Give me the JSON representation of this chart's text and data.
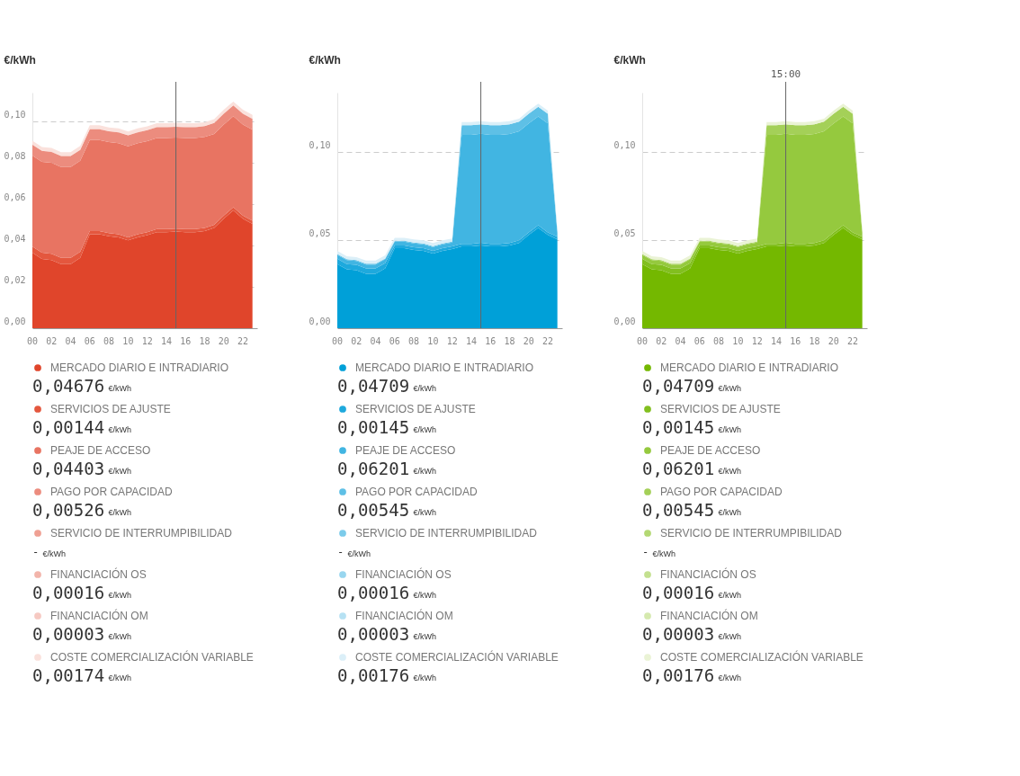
{
  "chart_data": [
    {
      "type": "area",
      "stacked": true,
      "ylabel": "€/kWh",
      "grid": "y",
      "legend": "bottom",
      "x": [
        0,
        1,
        2,
        3,
        4,
        5,
        6,
        7,
        8,
        9,
        10,
        11,
        12,
        13,
        14,
        15,
        16,
        17,
        18,
        19,
        20,
        21,
        22,
        23
      ],
      "xlim": [
        0,
        23.5
      ],
      "xticks": [
        {
          "value": 0,
          "label": "00"
        },
        {
          "value": 2,
          "label": "02"
        },
        {
          "value": 4,
          "label": "04"
        },
        {
          "value": 6,
          "label": "06"
        },
        {
          "value": 8,
          "label": "08"
        },
        {
          "value": 10,
          "label": "10"
        },
        {
          "value": 12,
          "label": "12"
        },
        {
          "value": 14,
          "label": "14"
        },
        {
          "value": 16,
          "label": "16"
        },
        {
          "value": 18,
          "label": "18"
        },
        {
          "value": 20,
          "label": "20"
        },
        {
          "value": 22,
          "label": "22"
        }
      ],
      "ylim": [
        0,
        0.114
      ],
      "yticks": [
        {
          "value": 0,
          "label": "0,00"
        },
        {
          "value": 0.02,
          "label": "0,02"
        },
        {
          "value": 0.04,
          "label": "0,04"
        },
        {
          "value": 0.06,
          "label": "0,06"
        },
        {
          "value": 0.08,
          "label": "0,08"
        },
        {
          "value": 0.1,
          "label": "0,10"
        }
      ],
      "series": [
        {
          "name": "MERCADO DIARIO E INTRADIARIO",
          "color": "#e0452b",
          "values": [
            0.0365,
            0.0335,
            0.033,
            0.031,
            0.031,
            0.034,
            0.0455,
            0.0455,
            0.0445,
            0.044,
            0.0425,
            0.044,
            0.045,
            0.0465,
            0.0465,
            0.04676,
            0.0465,
            0.0465,
            0.047,
            0.0485,
            0.053,
            0.057,
            0.053,
            0.0505
          ]
        },
        {
          "name": "SERVICIOS DE AJUSTE",
          "color": "#e4573e",
          "values": [
            0.003,
            0.003,
            0.003,
            0.003,
            0.003,
            0.003,
            0.0015,
            0.0015,
            0.0015,
            0.0015,
            0.0015,
            0.0015,
            0.0015,
            0.0015,
            0.0015,
            0.00144,
            0.0015,
            0.0015,
            0.0015,
            0.0015,
            0.0015,
            0.0015,
            0.0015,
            0.0015
          ]
        },
        {
          "name": "PEAJE DE ACCESO",
          "color": "#e87462",
          "values": [
            0.04403,
            0.04403,
            0.04403,
            0.04403,
            0.04403,
            0.04403,
            0.04403,
            0.04403,
            0.04403,
            0.04403,
            0.04403,
            0.04403,
            0.04403,
            0.04403,
            0.04403,
            0.04403,
            0.04403,
            0.04403,
            0.04403,
            0.04403,
            0.04403,
            0.04403,
            0.04403,
            0.04403
          ]
        },
        {
          "name": "PAGO POR CAPACIDAD",
          "color": "#ec8c7e",
          "values": [
            0.00526,
            0.00526,
            0.00526,
            0.00526,
            0.00526,
            0.00526,
            0.00526,
            0.00526,
            0.00526,
            0.00526,
            0.00526,
            0.00526,
            0.00526,
            0.00526,
            0.00526,
            0.00526,
            0.00526,
            0.00526,
            0.00526,
            0.00526,
            0.00526,
            0.00526,
            0.00526,
            0.00526
          ]
        },
        {
          "name": "SERVICIO DE INTERRUMPIBILIDAD",
          "color": "#efa093",
          "values": [
            null,
            null,
            null,
            null,
            null,
            null,
            null,
            null,
            null,
            null,
            null,
            null,
            null,
            null,
            null,
            null,
            null,
            null,
            null,
            null,
            null,
            null,
            null,
            null
          ]
        },
        {
          "name": "FINANCIACIÓN OS",
          "color": "#f2b4aa",
          "values": [
            0.00016,
            0.00016,
            0.00016,
            0.00016,
            0.00016,
            0.00016,
            0.00016,
            0.00016,
            0.00016,
            0.00016,
            0.00016,
            0.00016,
            0.00016,
            0.00016,
            0.00016,
            0.00016,
            0.00016,
            0.00016,
            0.00016,
            0.00016,
            0.00016,
            0.00016,
            0.00016,
            0.00016
          ]
        },
        {
          "name": "FINANCIACIÓN OM",
          "color": "#f6c9c2",
          "values": [
            null,
            null,
            null,
            null,
            null,
            null,
            null,
            null,
            null,
            null,
            null,
            null,
            null,
            null,
            null,
            null,
            null,
            null,
            null,
            null,
            null,
            null,
            null,
            null
          ]
        },
        {
          "name": "COSTE COMERCIALIZACIÓN VARIABLE",
          "color": "#fae1dc",
          "values": [
            0.00174,
            0.00174,
            0.00174,
            0.00174,
            0.00174,
            0.00174,
            0.00174,
            0.00174,
            0.00174,
            0.00174,
            0.00174,
            0.00174,
            0.00174,
            0.00174,
            0.00174,
            0.00174,
            0.00174,
            0.00174,
            0.00174,
            0.00174,
            0.00174,
            0.00174,
            0.00174,
            0.00174
          ]
        }
      ],
      "annotations": [
        "0,04676 €/kWh",
        "0,00144 €/kWh",
        "0,04403 €/kWh",
        "0,00526 €/kWh",
        "- €/kWh",
        "0,00016 €/kWh",
        "0,00003 €/kWh",
        "0,00174 €/kWh"
      ],
      "ref_lines": [
        {
          "axis": "x",
          "value": 15,
          "color": "#666666"
        }
      ]
    },
    {
      "type": "area",
      "stacked": true,
      "ylabel": "€/kWh",
      "grid": "y",
      "legend": "bottom",
      "x": [
        0,
        1,
        2,
        3,
        4,
        5,
        6,
        7,
        8,
        9,
        10,
        11,
        12,
        13,
        14,
        15,
        16,
        17,
        18,
        19,
        20,
        21,
        22,
        23
      ],
      "xlim": [
        0,
        23.5
      ],
      "xticks": [
        {
          "value": 0,
          "label": "00"
        },
        {
          "value": 2,
          "label": "02"
        },
        {
          "value": 4,
          "label": "04"
        },
        {
          "value": 6,
          "label": "06"
        },
        {
          "value": 8,
          "label": "08"
        },
        {
          "value": 10,
          "label": "10"
        },
        {
          "value": 12,
          "label": "12"
        },
        {
          "value": 14,
          "label": "14"
        },
        {
          "value": 16,
          "label": "16"
        },
        {
          "value": 18,
          "label": "18"
        },
        {
          "value": 20,
          "label": "20"
        },
        {
          "value": 22,
          "label": "22"
        }
      ],
      "ylim": [
        0,
        0.134
      ],
      "yticks": [
        {
          "value": 0,
          "label": "0,00"
        },
        {
          "value": 0.05,
          "label": "0,05"
        },
        {
          "value": 0.1,
          "label": "0,10"
        }
      ],
      "series": [
        {
          "name": "MERCADO DIARIO E INTRADIARIO",
          "color": "#00a0d8",
          "values": [
            0.0365,
            0.0335,
            0.033,
            0.031,
            0.031,
            0.034,
            0.0455,
            0.0455,
            0.0445,
            0.044,
            0.0425,
            0.044,
            0.045,
            0.0465,
            0.0465,
            0.04709,
            0.0465,
            0.0465,
            0.047,
            0.0485,
            0.053,
            0.057,
            0.053,
            0.0505
          ]
        },
        {
          "name": "SERVICIOS DE AJUSTE",
          "color": "#1ea9dd",
          "values": [
            0.003,
            0.003,
            0.003,
            0.003,
            0.003,
            0.003,
            0.0015,
            0.0015,
            0.0015,
            0.0015,
            0.0015,
            0.0015,
            0.0015,
            0.0015,
            0.0015,
            0.00145,
            0.0015,
            0.0015,
            0.0015,
            0.0015,
            0.0015,
            0.0015,
            0.0015,
            0.0015
          ]
        },
        {
          "name": "PEAJE DE ACCESO",
          "color": "#41b5e2",
          "values": [
            0.0022,
            0.0022,
            0.0022,
            0.0022,
            0.0022,
            0.0022,
            0.0022,
            0.0022,
            0.0022,
            0.0022,
            0.0022,
            0.0022,
            0.0022,
            0.06201,
            0.06201,
            0.06201,
            0.06201,
            0.06201,
            0.06201,
            0.06201,
            0.06201,
            0.06201,
            0.06201,
            0.0022
          ]
        },
        {
          "name": "PAGO POR CAPACIDAD",
          "color": "#5ec0e6",
          "values": [
            0.0005,
            0.0005,
            0.0005,
            0.0005,
            0.0005,
            0.0005,
            0.0005,
            0.0005,
            0.0005,
            0.0005,
            0.0005,
            0.0005,
            0.0005,
            0.00545,
            0.00545,
            0.00545,
            0.00545,
            0.00545,
            0.00545,
            0.00545,
            0.00545,
            0.00545,
            0.00545,
            0.0005
          ]
        },
        {
          "name": "SERVICIO DE INTERRUMPIBILIDAD",
          "color": "#7ccbea",
          "values": [
            null,
            null,
            null,
            null,
            null,
            null,
            null,
            null,
            null,
            null,
            null,
            null,
            null,
            null,
            null,
            null,
            null,
            null,
            null,
            null,
            null,
            null,
            null,
            null
          ]
        },
        {
          "name": "FINANCIACIÓN OS",
          "color": "#98d6ef",
          "values": [
            null,
            null,
            null,
            null,
            null,
            null,
            null,
            null,
            null,
            null,
            null,
            null,
            null,
            null,
            null,
            null,
            null,
            null,
            null,
            null,
            null,
            null,
            null,
            null
          ]
        },
        {
          "name": "FINANCIACIÓN OM",
          "color": "#b6e1f3",
          "values": [
            null,
            null,
            null,
            null,
            null,
            null,
            null,
            null,
            null,
            null,
            null,
            null,
            null,
            null,
            null,
            null,
            null,
            null,
            null,
            null,
            null,
            null,
            null,
            null
          ]
        },
        {
          "name": "COSTE COMERCIALIZACIÓN VARIABLE",
          "color": "#dbeff8",
          "values": [
            0.00176,
            0.00176,
            0.00176,
            0.00176,
            0.00176,
            0.00176,
            0.00176,
            0.00176,
            0.00176,
            0.00176,
            0.00176,
            0.00176,
            0.00176,
            0.00176,
            0.00176,
            0.00176,
            0.00176,
            0.00176,
            0.00176,
            0.00176,
            0.00176,
            0.00176,
            0.00176,
            0.00176
          ]
        }
      ],
      "annotations": [
        "0,04709 €/kWh",
        "0,00145 €/kWh",
        "0,06201 €/kWh",
        "0,00545 €/kWh",
        "- €/kWh",
        "0,00016 €/kWh",
        "0,00003 €/kWh",
        "0,00176 €/kWh"
      ],
      "ref_lines": [
        {
          "axis": "x",
          "value": 15,
          "color": "#666666"
        }
      ]
    },
    {
      "type": "area",
      "stacked": true,
      "ylabel": "€/kWh",
      "grid": "y",
      "legend": "bottom",
      "x": [
        0,
        1,
        2,
        3,
        4,
        5,
        6,
        7,
        8,
        9,
        10,
        11,
        12,
        13,
        14,
        15,
        16,
        17,
        18,
        19,
        20,
        21,
        22,
        23
      ],
      "xlim": [
        0,
        23.5
      ],
      "xticks": [
        {
          "value": 0,
          "label": "00"
        },
        {
          "value": 2,
          "label": "02"
        },
        {
          "value": 4,
          "label": "04"
        },
        {
          "value": 6,
          "label": "06"
        },
        {
          "value": 8,
          "label": "08"
        },
        {
          "value": 10,
          "label": "10"
        },
        {
          "value": 12,
          "label": "12"
        },
        {
          "value": 14,
          "label": "14"
        },
        {
          "value": 16,
          "label": "16"
        },
        {
          "value": 18,
          "label": "18"
        },
        {
          "value": 20,
          "label": "20"
        },
        {
          "value": 22,
          "label": "22"
        }
      ],
      "ylim": [
        0,
        0.134
      ],
      "yticks": [
        {
          "value": 0,
          "label": "0,00"
        },
        {
          "value": 0.05,
          "label": "0,05"
        },
        {
          "value": 0.1,
          "label": "0,10"
        }
      ],
      "series": [
        {
          "name": "MERCADO DIARIO E INTRADIARIO",
          "color": "#74b800",
          "values": [
            0.0365,
            0.0335,
            0.033,
            0.031,
            0.031,
            0.034,
            0.0455,
            0.0455,
            0.0445,
            0.044,
            0.0425,
            0.044,
            0.045,
            0.0465,
            0.0465,
            0.04709,
            0.0465,
            0.0465,
            0.047,
            0.0485,
            0.053,
            0.057,
            0.053,
            0.0505
          ]
        },
        {
          "name": "SERVICIOS DE AJUSTE",
          "color": "#82bf1f",
          "values": [
            0.003,
            0.003,
            0.003,
            0.003,
            0.003,
            0.003,
            0.0015,
            0.0015,
            0.0015,
            0.0015,
            0.0015,
            0.0015,
            0.0015,
            0.0015,
            0.0015,
            0.00145,
            0.0015,
            0.0015,
            0.0015,
            0.0015,
            0.0015,
            0.0015,
            0.0015,
            0.0015
          ]
        },
        {
          "name": "PEAJE DE ACCESO",
          "color": "#95c93e",
          "values": [
            0.0022,
            0.0022,
            0.0022,
            0.0022,
            0.0022,
            0.0022,
            0.0022,
            0.0022,
            0.0022,
            0.0022,
            0.0022,
            0.0022,
            0.0022,
            0.06201,
            0.06201,
            0.06201,
            0.06201,
            0.06201,
            0.06201,
            0.06201,
            0.06201,
            0.06201,
            0.06201,
            0.0022
          ]
        },
        {
          "name": "PAGO POR CAPACIDAD",
          "color": "#a4d058",
          "values": [
            0.0005,
            0.0005,
            0.0005,
            0.0005,
            0.0005,
            0.0005,
            0.0005,
            0.0005,
            0.0005,
            0.0005,
            0.0005,
            0.0005,
            0.0005,
            0.00545,
            0.00545,
            0.00545,
            0.00545,
            0.00545,
            0.00545,
            0.00545,
            0.00545,
            0.00545,
            0.00545,
            0.0005
          ]
        },
        {
          "name": "SERVICIO DE INTERRUMPIBILIDAD",
          "color": "#b3d873",
          "values": [
            null,
            null,
            null,
            null,
            null,
            null,
            null,
            null,
            null,
            null,
            null,
            null,
            null,
            null,
            null,
            null,
            null,
            null,
            null,
            null,
            null,
            null,
            null,
            null
          ]
        },
        {
          "name": "FINANCIACIÓN OS",
          "color": "#c3e08f",
          "values": [
            null,
            null,
            null,
            null,
            null,
            null,
            null,
            null,
            null,
            null,
            null,
            null,
            null,
            null,
            null,
            null,
            null,
            null,
            null,
            null,
            null,
            null,
            null,
            null
          ]
        },
        {
          "name": "FINANCIACIÓN OM",
          "color": "#d5e9ae",
          "values": [
            null,
            null,
            null,
            null,
            null,
            null,
            null,
            null,
            null,
            null,
            null,
            null,
            null,
            null,
            null,
            null,
            null,
            null,
            null,
            null,
            null,
            null,
            null,
            null
          ]
        },
        {
          "name": "COSTE COMERCIALIZACIÓN VARIABLE",
          "color": "#eaf3d5",
          "values": [
            0.00176,
            0.00176,
            0.00176,
            0.00176,
            0.00176,
            0.00176,
            0.00176,
            0.00176,
            0.00176,
            0.00176,
            0.00176,
            0.00176,
            0.00176,
            0.00176,
            0.00176,
            0.00176,
            0.00176,
            0.00176,
            0.00176,
            0.00176,
            0.00176,
            0.00176,
            0.00176,
            0.00176
          ]
        }
      ],
      "annotations": [
        "0,04709 €/kWh",
        "0,00145 €/kWh",
        "0,06201 €/kWh",
        "0,00545 €/kWh",
        "- €/kWh",
        "0,00016 €/kWh",
        "0,00003 €/kWh",
        "0,00176 €/kWh"
      ],
      "ref_lines": [
        {
          "axis": "x",
          "value": 15,
          "color": "#666666",
          "label": "15:00"
        }
      ]
    }
  ]
}
